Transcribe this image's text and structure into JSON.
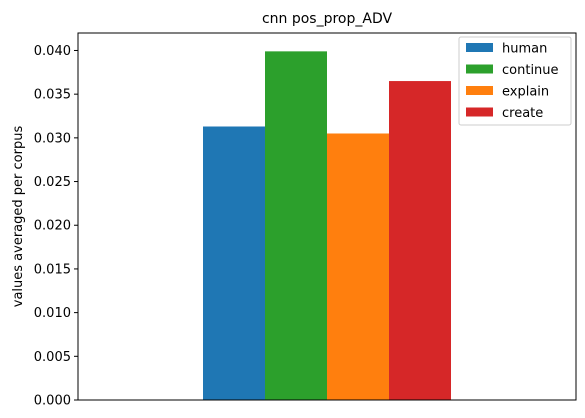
{
  "chart_data": {
    "type": "bar",
    "title": "cnn pos_prop_ADV",
    "xlabel": "",
    "ylabel": "values averaged per corpus",
    "ylim": [
      0,
      0.042
    ],
    "yticks": [
      0.0,
      0.005,
      0.01,
      0.015,
      0.02,
      0.025,
      0.03,
      0.035,
      0.04
    ],
    "ytick_labels": [
      "0.000",
      "0.005",
      "0.010",
      "0.015",
      "0.020",
      "0.025",
      "0.030",
      "0.035",
      "0.040"
    ],
    "grid": false,
    "legend_position": "top-right",
    "series": [
      {
        "name": "human",
        "value": 0.0313,
        "color": "#1f77b4"
      },
      {
        "name": "continue",
        "value": 0.0399,
        "color": "#2ca02c"
      },
      {
        "name": "explain",
        "value": 0.0305,
        "color": "#ff7f0e"
      },
      {
        "name": "create",
        "value": 0.0365,
        "color": "#d62728"
      }
    ]
  }
}
